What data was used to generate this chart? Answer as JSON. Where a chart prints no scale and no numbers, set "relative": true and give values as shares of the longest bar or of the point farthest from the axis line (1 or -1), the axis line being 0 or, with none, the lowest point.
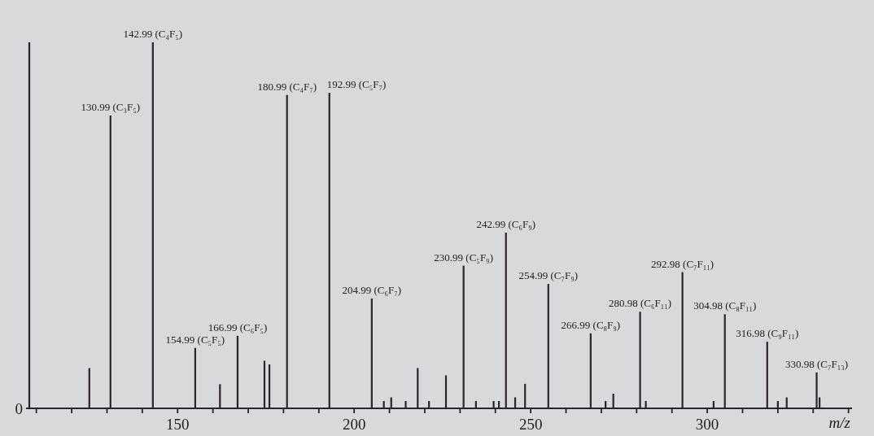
{
  "chart_data": {
    "type": "bar",
    "relative": true,
    "xlabel": "m/z",
    "xlim": [
      108,
      341
    ],
    "xticks": [
      {
        "value": 110,
        "label": null
      },
      {
        "value": 120,
        "label": null
      },
      {
        "value": 130,
        "label": null
      },
      {
        "value": 140,
        "label": null
      },
      150,
      {
        "value": 160,
        "label": null
      },
      {
        "value": 170,
        "label": null
      },
      {
        "value": 180,
        "label": null
      },
      {
        "value": 190,
        "label": null
      },
      200,
      {
        "value": 210,
        "label": null
      },
      {
        "value": 220,
        "label": null
      },
      {
        "value": 230,
        "label": null
      },
      {
        "value": 240,
        "label": null
      },
      250,
      {
        "value": 260,
        "label": null
      },
      {
        "value": 270,
        "label": null
      },
      {
        "value": 280,
        "label": null
      },
      {
        "value": 290,
        "label": null
      },
      300,
      {
        "value": 310,
        "label": null
      },
      {
        "value": 320,
        "label": null
      },
      {
        "value": 330,
        "label": null
      },
      {
        "value": 340,
        "label": null
      }
    ],
    "x": [
      125,
      130.99,
      142.99,
      154.99,
      162,
      166.99,
      174.6,
      176,
      180.99,
      192.99,
      204.99,
      208.4,
      210.5,
      214.6,
      218,
      221.2,
      226,
      230.99,
      234.5,
      239.5,
      241,
      242.99,
      245.6,
      248.4,
      254.99,
      266.99,
      271.2,
      273.4,
      280.98,
      282.6,
      292.98,
      301.8,
      304.98,
      316.98,
      320,
      322.5,
      330.98,
      331.8
    ],
    "values": [
      0.11,
      0.8,
      1,
      0.165,
      0.066,
      0.198,
      0.13,
      0.12,
      0.856,
      0.862,
      0.3,
      0.02,
      0.03,
      0.02,
      0.11,
      0.02,
      0.09,
      0.39,
      0.02,
      0.02,
      0.02,
      0.48,
      0.03,
      0.067,
      0.34,
      0.205,
      0.02,
      0.04,
      0.264,
      0.02,
      0.372,
      0.02,
      0.257,
      0.182,
      0.02,
      0.03,
      0.098,
      0.03
    ],
    "color": "#2b2430",
    "annotations": [
      "0",
      {
        "text": "130.99 (C₃F₅)",
        "x": 130.99,
        "y": 0.8
      },
      {
        "text": "142.99 (C₄F₅)",
        "x": 142.99,
        "y": 1
      },
      {
        "text": "154.99 (C₅F₅)",
        "x": 154.99,
        "y": 0.165
      },
      {
        "text": "166.99 (C₆F₅)",
        "x": 166.99,
        "y": 0.198
      },
      {
        "text": "180.99 (C₄F₇)",
        "x": 180.99,
        "y": 0.856
      },
      {
        "text": "192.99 (C₅F₇)",
        "x": 192.99,
        "y": 0.862
      },
      {
        "text": "204.99 (C₆F₇)",
        "x": 204.99,
        "y": 0.3
      },
      {
        "text": "230.99 (C₅F₉)",
        "x": 230.99,
        "y": 0.39
      },
      {
        "text": "242.99 (C₆F₉)",
        "x": 242.99,
        "y": 0.48
      },
      {
        "text": "254.99 (C₇F₉)",
        "x": 254.99,
        "y": 0.34
      },
      {
        "text": "266.99 (C₈F₉)",
        "x": 266.99,
        "y": 0.205
      },
      {
        "text": "280.98 (C₆F₁₁)",
        "x": 280.98,
        "y": 0.264
      },
      {
        "text": "292.98 (C₇F₁₁)",
        "x": 292.98,
        "y": 0.372
      },
      {
        "text": "304.98 (C₈F₁₁)",
        "x": 304.98,
        "y": 0.257
      },
      {
        "text": "316.98 (C₉F₁₁)",
        "x": 316.98,
        "y": 0.182
      },
      {
        "text": "330.98 (C₇F₁₃)",
        "x": 330.98,
        "y": 0.098
      }
    ]
  }
}
